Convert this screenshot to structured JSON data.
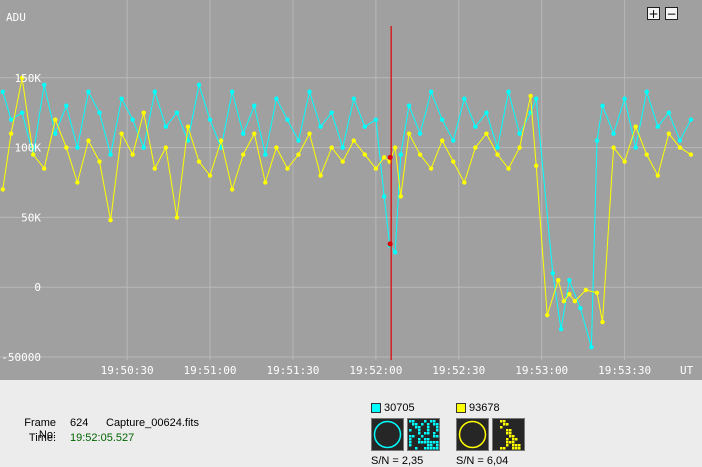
{
  "chart_data": {
    "type": "line",
    "ylabel": "ADU",
    "xlabel": "UT",
    "ylim": [
      -50000,
      200000
    ],
    "xlim_seconds": [
      "19:49:44",
      "19:53:58"
    ],
    "y_ticks": [
      "150K",
      "100K",
      "50K",
      "0",
      "-50000"
    ],
    "y_tick_values": [
      150000,
      100000,
      50000,
      0,
      -50000
    ],
    "x_ticks": [
      "19:50:30",
      "19:51:00",
      "19:51:30",
      "19:52:00",
      "19:52:30",
      "19:53:00",
      "19:53:30"
    ],
    "grid": true,
    "cursor_time": "19:52:05.527",
    "cursor_values": [
      93000,
      31000
    ],
    "series": [
      {
        "color": "#00ffff",
        "x": [
          "19:49:45",
          "19:49:48",
          "19:49:52",
          "19:49:56",
          "19:50:00",
          "19:50:04",
          "19:50:08",
          "19:50:12",
          "19:50:16",
          "19:50:20",
          "19:50:24",
          "19:50:28",
          "19:50:32",
          "19:50:36",
          "19:50:40",
          "19:50:44",
          "19:50:48",
          "19:50:52",
          "19:50:56",
          "19:51:00",
          "19:51:04",
          "19:51:08",
          "19:51:12",
          "19:51:16",
          "19:51:20",
          "19:51:24",
          "19:51:28",
          "19:51:32",
          "19:51:36",
          "19:51:40",
          "19:51:44",
          "19:51:48",
          "19:51:52",
          "19:51:56",
          "19:52:00",
          "19:52:03",
          "19:52:05",
          "19:52:07",
          "19:52:09",
          "19:52:12",
          "19:52:16",
          "19:52:20",
          "19:52:24",
          "19:52:28",
          "19:52:32",
          "19:52:36",
          "19:52:40",
          "19:52:44",
          "19:52:48",
          "19:52:52",
          "19:52:56",
          "19:52:58",
          "19:53:04",
          "19:53:07",
          "19:53:10",
          "19:53:14",
          "19:53:18",
          "19:53:20",
          "19:53:22",
          "19:53:26",
          "19:53:30",
          "19:53:34",
          "19:53:38",
          "19:53:42",
          "19:53:46",
          "19:53:50",
          "19:53:54"
        ],
        "values": [
          140000,
          120000,
          125000,
          95000,
          145000,
          110000,
          130000,
          100000,
          140000,
          125000,
          95000,
          135000,
          120000,
          100000,
          140000,
          115000,
          125000,
          105000,
          145000,
          120000,
          100000,
          140000,
          110000,
          130000,
          95000,
          135000,
          120000,
          105000,
          140000,
          115000,
          125000,
          100000,
          135000,
          115000,
          120000,
          65000,
          30000,
          25000,
          95000,
          130000,
          110000,
          140000,
          120000,
          105000,
          135000,
          115000,
          125000,
          100000,
          140000,
          110000,
          125000,
          135000,
          10000,
          -30000,
          5000,
          -15000,
          -43000,
          105000,
          130000,
          110000,
          135000,
          100000,
          140000,
          115000,
          125000,
          105000,
          120000
        ]
      },
      {
        "color": "#ffff00",
        "x": [
          "19:49:45",
          "19:49:48",
          "19:49:52",
          "19:49:56",
          "19:50:00",
          "19:50:04",
          "19:50:08",
          "19:50:12",
          "19:50:16",
          "19:50:20",
          "19:50:24",
          "19:50:28",
          "19:50:32",
          "19:50:36",
          "19:50:40",
          "19:50:44",
          "19:50:48",
          "19:50:52",
          "19:50:56",
          "19:51:00",
          "19:51:04",
          "19:51:08",
          "19:51:12",
          "19:51:16",
          "19:51:20",
          "19:51:24",
          "19:51:28",
          "19:51:32",
          "19:51:36",
          "19:51:40",
          "19:51:44",
          "19:51:48",
          "19:51:52",
          "19:51:56",
          "19:52:00",
          "19:52:03",
          "19:52:05",
          "19:52:07",
          "19:52:09",
          "19:52:12",
          "19:52:16",
          "19:52:20",
          "19:52:24",
          "19:52:28",
          "19:52:32",
          "19:52:36",
          "19:52:40",
          "19:52:44",
          "19:52:48",
          "19:52:52",
          "19:52:56",
          "19:52:58",
          "19:53:02",
          "19:53:06",
          "19:53:08",
          "19:53:10",
          "19:53:12",
          "19:53:16",
          "19:53:20",
          "19:53:22",
          "19:53:26",
          "19:53:30",
          "19:53:34",
          "19:53:38",
          "19:53:42",
          "19:53:46",
          "19:53:50",
          "19:53:54"
        ],
        "values": [
          70000,
          110000,
          150000,
          95000,
          85000,
          120000,
          100000,
          75000,
          105000,
          90000,
          48000,
          110000,
          95000,
          125000,
          85000,
          100000,
          50000,
          115000,
          90000,
          80000,
          105000,
          70000,
          95000,
          110000,
          75000,
          100000,
          85000,
          95000,
          110000,
          80000,
          100000,
          90000,
          105000,
          95000,
          85000,
          93000,
          90000,
          100000,
          65000,
          110000,
          95000,
          85000,
          105000,
          90000,
          75000,
          100000,
          110000,
          95000,
          85000,
          100000,
          137000,
          87000,
          -20000,
          5000,
          -10000,
          -5000,
          -10000,
          -2000,
          -4000,
          -25000,
          100000,
          90000,
          115000,
          95000,
          80000,
          110000,
          100000,
          95000
        ]
      }
    ]
  },
  "controls": {
    "zoom_in_label": "+",
    "zoom_out_label": "−"
  },
  "frame_info": {
    "frame_label": "Frame No:",
    "frame_number": "624",
    "file_name": "Capture_00624.fits",
    "time_label": "Time:",
    "time_value": "19:52:05.527"
  },
  "stars": [
    {
      "id": "30705",
      "color": "#00ffff",
      "sn_label": "S/N = 2,35"
    },
    {
      "id": "93678",
      "color": "#ffff00",
      "sn_label": "S/N = 6,04"
    }
  ]
}
